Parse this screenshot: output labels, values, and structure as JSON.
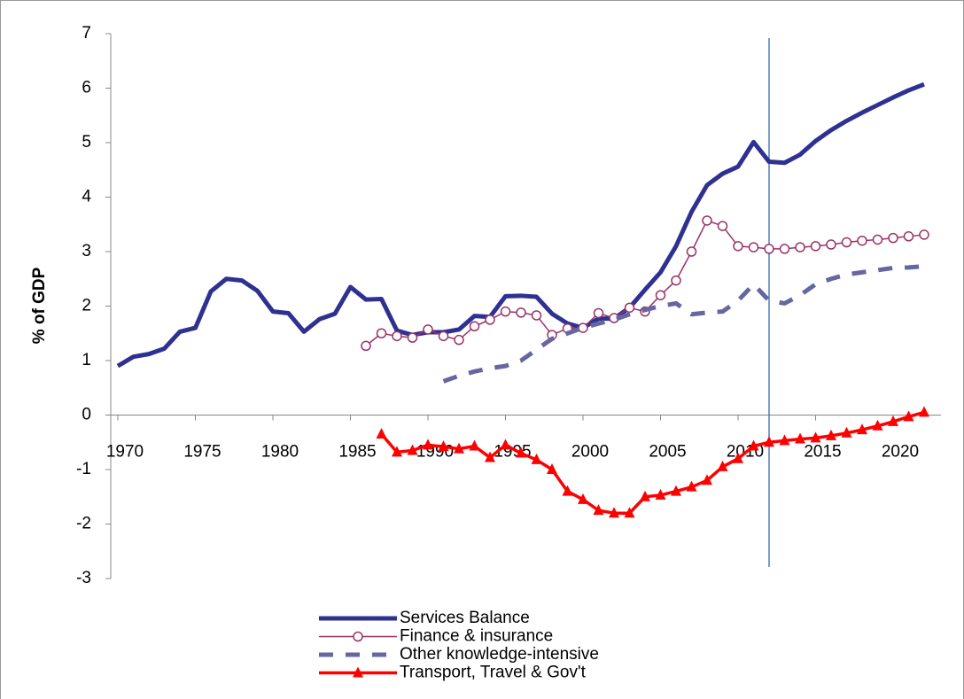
{
  "chart_data": {
    "type": "line",
    "y_label": "% of GDP",
    "x": [
      1970,
      1971,
      1972,
      1973,
      1974,
      1975,
      1976,
      1977,
      1978,
      1979,
      1980,
      1981,
      1982,
      1983,
      1984,
      1985,
      1986,
      1987,
      1988,
      1989,
      1990,
      1991,
      1992,
      1993,
      1994,
      1995,
      1996,
      1997,
      1998,
      1999,
      2000,
      2001,
      2002,
      2003,
      2004,
      2005,
      2006,
      2007,
      2008,
      2009,
      2010,
      2011,
      2012,
      2013,
      2014,
      2015,
      2016,
      2017,
      2018,
      2019,
      2020,
      2021,
      2022
    ],
    "xlim": [
      1970,
      2022
    ],
    "xticks": [
      1970,
      1975,
      1980,
      1985,
      1990,
      1995,
      2000,
      2005,
      2010,
      2015,
      2020
    ],
    "ylim": [
      -3,
      7
    ],
    "yticks": [
      -3,
      -2,
      -1,
      0,
      1,
      2,
      3,
      4,
      5,
      6,
      7
    ],
    "vline_x": 2012,
    "series": [
      {
        "name": "Services Balance",
        "color": "#2e3192",
        "style": "thick",
        "values": [
          0.9,
          1.07,
          1.12,
          1.22,
          1.53,
          1.6,
          2.27,
          2.5,
          2.47,
          2.28,
          1.9,
          1.87,
          1.53,
          1.76,
          1.86,
          2.35,
          2.12,
          2.13,
          1.55,
          1.47,
          1.52,
          1.52,
          1.57,
          1.82,
          1.8,
          2.18,
          2.19,
          2.17,
          1.86,
          1.68,
          1.6,
          1.77,
          1.77,
          1.97,
          2.3,
          2.62,
          3.1,
          3.73,
          4.22,
          4.43,
          4.56,
          5.01,
          4.65,
          4.63,
          4.78,
          5.03,
          5.23,
          5.4,
          5.55,
          5.69,
          5.83,
          5.96,
          6.07
        ]
      },
      {
        "name": "Finance & insurance",
        "color": "#993366",
        "style": "circles",
        "values": [
          null,
          null,
          null,
          null,
          null,
          null,
          null,
          null,
          null,
          null,
          null,
          null,
          null,
          null,
          null,
          null,
          1.27,
          1.5,
          1.45,
          1.42,
          1.57,
          1.45,
          1.38,
          1.63,
          1.75,
          1.9,
          1.88,
          1.83,
          1.47,
          1.59,
          1.6,
          1.87,
          1.78,
          1.97,
          1.9,
          2.2,
          2.47,
          3.0,
          3.57,
          3.47,
          3.1,
          3.08,
          3.05,
          3.05,
          3.08,
          3.1,
          3.13,
          3.17,
          3.2,
          3.22,
          3.25,
          3.28,
          3.31
        ]
      },
      {
        "name": "Other knowledge-intensive",
        "color": "#6666a0",
        "style": "dashed",
        "values": [
          null,
          null,
          null,
          null,
          null,
          null,
          null,
          null,
          null,
          null,
          null,
          null,
          null,
          null,
          null,
          null,
          null,
          null,
          null,
          null,
          null,
          0.62,
          0.72,
          0.8,
          0.86,
          0.9,
          1.0,
          1.2,
          1.4,
          1.5,
          1.6,
          1.68,
          1.75,
          1.85,
          1.93,
          2.0,
          2.05,
          1.85,
          1.88,
          1.9,
          2.1,
          2.4,
          2.1,
          2.05,
          2.2,
          2.4,
          2.5,
          2.58,
          2.62,
          2.66,
          2.7,
          2.71,
          2.73
        ]
      },
      {
        "name": "Transport, Travel & Gov't",
        "color": "#ff0000",
        "style": "triangles",
        "values": [
          null,
          null,
          null,
          null,
          null,
          null,
          null,
          null,
          null,
          null,
          null,
          null,
          null,
          null,
          null,
          null,
          null,
          -0.35,
          -0.68,
          -0.65,
          -0.55,
          -0.58,
          -0.62,
          -0.57,
          -0.78,
          -0.55,
          -0.7,
          -0.82,
          -1.0,
          -1.4,
          -1.55,
          -1.75,
          -1.8,
          -1.8,
          -1.5,
          -1.47,
          -1.4,
          -1.32,
          -1.2,
          -0.95,
          -0.8,
          -0.57,
          -0.5,
          -0.47,
          -0.44,
          -0.42,
          -0.38,
          -0.33,
          -0.27,
          -0.2,
          -0.12,
          -0.03,
          0.05
        ]
      }
    ]
  }
}
